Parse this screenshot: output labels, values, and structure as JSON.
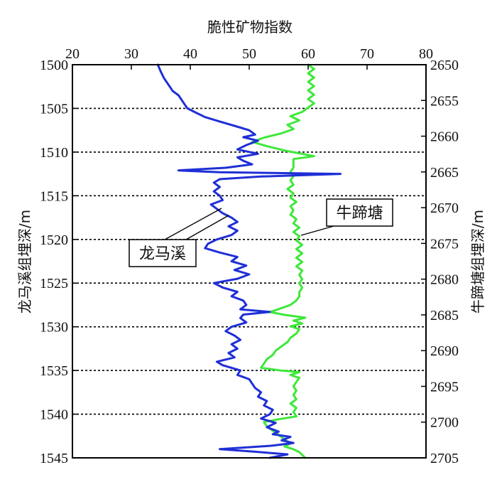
{
  "chart_data": {
    "type": "line",
    "title": "脆性矿物指数",
    "x_axis": {
      "position": "top",
      "range": [
        20,
        80
      ],
      "ticks": [
        20,
        30,
        40,
        50,
        60,
        70,
        80
      ]
    },
    "y_left": {
      "label": "龙马溪组埋深/m",
      "range": [
        1500,
        1545
      ],
      "ticks": [
        1500,
        1505,
        1510,
        1515,
        1520,
        1525,
        1530,
        1535,
        1540,
        1545
      ],
      "reversed": true
    },
    "y_right": {
      "label": "牛蹄塘组埋深/m",
      "range": [
        2650,
        2705
      ],
      "ticks": [
        2650,
        2655,
        2660,
        2665,
        2670,
        2675,
        2680,
        2685,
        2690,
        2695,
        2700,
        2705
      ],
      "reversed": true
    },
    "grid": {
      "horizontal_dotted_at_left_depth": [
        1505,
        1510,
        1515,
        1520,
        1525,
        1530,
        1535,
        1540
      ]
    },
    "series": [
      {
        "name": "龙马溪",
        "color": "#1f2fd6",
        "depth_axis": "left",
        "points": [
          [
            1500.0,
            34.5
          ],
          [
            1500.8,
            35.0
          ],
          [
            1501.5,
            35.5
          ],
          [
            1502.0,
            36.0
          ],
          [
            1502.5,
            36.5
          ],
          [
            1503.0,
            37.0
          ],
          [
            1503.5,
            38.0
          ],
          [
            1504.0,
            38.5
          ],
          [
            1504.5,
            39.0
          ],
          [
            1505.0,
            39.5
          ],
          [
            1505.5,
            41.0
          ],
          [
            1506.0,
            42.5
          ],
          [
            1506.5,
            45.0
          ],
          [
            1507.0,
            47.5
          ],
          [
            1507.5,
            50.0
          ],
          [
            1508.0,
            51.0
          ],
          [
            1508.3,
            49.0
          ],
          [
            1508.7,
            51.5
          ],
          [
            1509.2,
            49.5
          ],
          [
            1509.7,
            48.0
          ],
          [
            1510.2,
            51.5
          ],
          [
            1510.6,
            48.0
          ],
          [
            1511.0,
            49.0
          ],
          [
            1511.4,
            50.5
          ],
          [
            1511.8,
            46.0
          ],
          [
            1512.1,
            38.0
          ],
          [
            1512.3,
            45.0
          ],
          [
            1512.5,
            65.5
          ],
          [
            1512.8,
            52.0
          ],
          [
            1513.1,
            45.0
          ],
          [
            1513.5,
            44.0
          ],
          [
            1514.0,
            45.0
          ],
          [
            1514.5,
            44.0
          ],
          [
            1515.0,
            45.0
          ],
          [
            1515.5,
            45.5
          ],
          [
            1516.0,
            43.5
          ],
          [
            1516.5,
            44.5
          ],
          [
            1517.0,
            45.5
          ],
          [
            1517.5,
            47.0
          ],
          [
            1518.0,
            48.0
          ],
          [
            1518.5,
            46.5
          ],
          [
            1519.0,
            48.0
          ],
          [
            1519.5,
            47.0
          ],
          [
            1520.0,
            44.5
          ],
          [
            1520.5,
            43.0
          ],
          [
            1521.0,
            42.5
          ],
          [
            1521.5,
            45.0
          ],
          [
            1522.0,
            48.0
          ],
          [
            1522.5,
            47.0
          ],
          [
            1523.0,
            49.5
          ],
          [
            1523.5,
            47.5
          ],
          [
            1524.0,
            50.0
          ],
          [
            1524.5,
            48.0
          ],
          [
            1525.0,
            44.0
          ],
          [
            1525.5,
            45.5
          ],
          [
            1526.0,
            48.0
          ],
          [
            1526.5,
            47.0
          ],
          [
            1527.0,
            49.0
          ],
          [
            1527.5,
            49.5
          ],
          [
            1528.0,
            48.5
          ],
          [
            1528.3,
            53.5
          ],
          [
            1528.6,
            49.0
          ],
          [
            1529.0,
            48.5
          ],
          [
            1529.5,
            49.5
          ],
          [
            1530.0,
            47.0
          ],
          [
            1530.5,
            46.0
          ],
          [
            1531.0,
            47.5
          ],
          [
            1531.5,
            48.5
          ],
          [
            1532.0,
            47.0
          ],
          [
            1532.5,
            48.0
          ],
          [
            1533.0,
            46.5
          ],
          [
            1533.5,
            47.5
          ],
          [
            1534.0,
            44.5
          ],
          [
            1534.4,
            45.5
          ],
          [
            1535.0,
            48.5
          ],
          [
            1535.5,
            48.0
          ],
          [
            1536.0,
            50.0
          ],
          [
            1536.5,
            50.5
          ],
          [
            1537.0,
            51.0
          ],
          [
            1537.5,
            52.0
          ],
          [
            1538.0,
            51.5
          ],
          [
            1538.5,
            53.0
          ],
          [
            1539.0,
            52.5
          ],
          [
            1539.5,
            54.0
          ],
          [
            1540.0,
            53.5
          ],
          [
            1540.5,
            52.0
          ],
          [
            1541.0,
            54.5
          ],
          [
            1541.5,
            53.0
          ],
          [
            1542.0,
            55.0
          ],
          [
            1542.3,
            54.0
          ],
          [
            1542.6,
            57.0
          ],
          [
            1543.0,
            55.5
          ],
          [
            1543.3,
            57.5
          ],
          [
            1543.6,
            54.0
          ],
          [
            1544.0,
            45.0
          ],
          [
            1544.3,
            51.0
          ],
          [
            1544.6,
            56.5
          ],
          [
            1545.0,
            53.5
          ]
        ]
      },
      {
        "name": "牛蹄塘",
        "color": "#3ee83a",
        "depth_axis": "right",
        "points": [
          [
            2650.0,
            60.0
          ],
          [
            2650.6,
            61.0
          ],
          [
            2651.2,
            60.0
          ],
          [
            2651.8,
            61.0
          ],
          [
            2652.4,
            60.0
          ],
          [
            2653.0,
            61.0
          ],
          [
            2653.6,
            60.0
          ],
          [
            2654.2,
            61.0
          ],
          [
            2654.8,
            60.0
          ],
          [
            2655.4,
            61.0
          ],
          [
            2656.0,
            60.0
          ],
          [
            2656.6,
            59.0
          ],
          [
            2657.2,
            57.0
          ],
          [
            2657.8,
            58.5
          ],
          [
            2658.4,
            56.5
          ],
          [
            2659.0,
            57.5
          ],
          [
            2659.6,
            55.5
          ],
          [
            2660.2,
            52.5
          ],
          [
            2660.8,
            50.5
          ],
          [
            2661.4,
            53.0
          ],
          [
            2662.0,
            56.0
          ],
          [
            2662.4,
            58.5
          ],
          [
            2662.8,
            61.0
          ],
          [
            2663.2,
            57.5
          ],
          [
            2663.8,
            57.5
          ],
          [
            2664.4,
            57.5
          ],
          [
            2665.0,
            57.0
          ],
          [
            2665.6,
            57.5
          ],
          [
            2666.2,
            57.0
          ],
          [
            2666.8,
            57.5
          ],
          [
            2667.4,
            56.5
          ],
          [
            2668.0,
            57.5
          ],
          [
            2668.6,
            57.0
          ],
          [
            2669.2,
            58.0
          ],
          [
            2669.8,
            57.0
          ],
          [
            2670.4,
            57.5
          ],
          [
            2671.0,
            57.0
          ],
          [
            2671.6,
            58.0
          ],
          [
            2672.2,
            57.5
          ],
          [
            2672.8,
            58.5
          ],
          [
            2673.4,
            57.5
          ],
          [
            2674.0,
            58.5
          ],
          [
            2674.6,
            58.0
          ],
          [
            2675.2,
            59.0
          ],
          [
            2675.8,
            58.0
          ],
          [
            2676.4,
            59.0
          ],
          [
            2677.0,
            58.0
          ],
          [
            2677.6,
            59.0
          ],
          [
            2678.2,
            58.0
          ],
          [
            2678.8,
            59.0
          ],
          [
            2679.4,
            58.5
          ],
          [
            2680.0,
            59.0
          ],
          [
            2680.6,
            58.5
          ],
          [
            2681.2,
            59.0
          ],
          [
            2681.8,
            58.5
          ],
          [
            2682.4,
            58.5
          ],
          [
            2683.0,
            58.0
          ],
          [
            2683.6,
            57.0
          ],
          [
            2684.2,
            55.0
          ],
          [
            2684.6,
            53.5
          ],
          [
            2685.0,
            56.0
          ],
          [
            2685.4,
            59.5
          ],
          [
            2685.8,
            57.5
          ],
          [
            2686.2,
            59.0
          ],
          [
            2686.6,
            57.0
          ],
          [
            2687.0,
            58.5
          ],
          [
            2687.6,
            58.0
          ],
          [
            2688.2,
            57.0
          ],
          [
            2688.8,
            56.5
          ],
          [
            2689.4,
            55.5
          ],
          [
            2690.0,
            54.5
          ],
          [
            2690.6,
            54.0
          ],
          [
            2691.2,
            53.0
          ],
          [
            2691.8,
            52.5
          ],
          [
            2692.4,
            52.0
          ],
          [
            2692.8,
            55.5
          ],
          [
            2693.0,
            58.5
          ],
          [
            2693.4,
            57.0
          ],
          [
            2693.8,
            58.5
          ],
          [
            2694.4,
            58.0
          ],
          [
            2695.0,
            57.5
          ],
          [
            2695.6,
            58.0
          ],
          [
            2696.2,
            57.5
          ],
          [
            2696.8,
            58.0
          ],
          [
            2697.4,
            57.0
          ],
          [
            2698.0,
            58.0
          ],
          [
            2698.6,
            57.5
          ],
          [
            2699.2,
            58.0
          ],
          [
            2699.6,
            55.0
          ],
          [
            2700.0,
            52.5
          ],
          [
            2700.6,
            53.0
          ],
          [
            2701.2,
            54.0
          ],
          [
            2701.8,
            55.0
          ],
          [
            2702.4,
            56.0
          ],
          [
            2703.0,
            57.0
          ],
          [
            2703.4,
            56.0
          ],
          [
            2703.8,
            57.5
          ],
          [
            2704.2,
            58.5
          ],
          [
            2705.0,
            59.5
          ]
        ]
      }
    ],
    "annotations": [
      {
        "text": "龙马溪",
        "series": "龙马溪",
        "anchor_depth_left": 1518.5,
        "box_left_value": 22,
        "box_depth_left": 1522
      },
      {
        "text": "牛蹄塘",
        "series": "牛蹄塘",
        "anchor_depth_right": 2674.5,
        "box_left_value": 60,
        "box_depth_left": 1517
      }
    ]
  }
}
